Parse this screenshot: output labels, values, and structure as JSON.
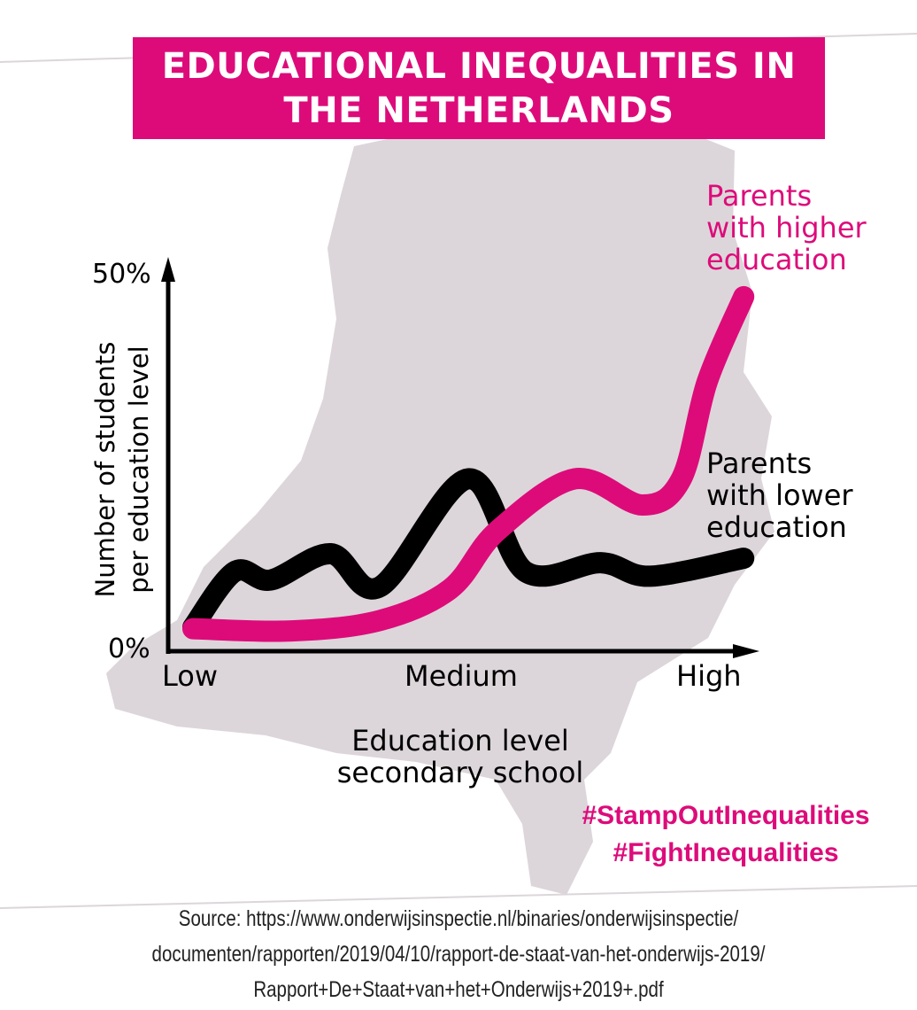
{
  "title": [
    "EDUCATIONAL INEQUALITIES IN",
    "THE NETHERLANDS"
  ],
  "colors": {
    "accent": "#dd0b7a",
    "map": "#dcd6da",
    "lower_series": "#000000"
  },
  "chart_data": {
    "type": "line",
    "xlabel": [
      "Education level",
      "secondary school"
    ],
    "ylabel": [
      "Number of students",
      "per education level"
    ],
    "x_tick_labels": [
      "Low",
      "Medium",
      "High"
    ],
    "y_tick_labels": [
      "0%",
      "50%"
    ],
    "ylim": [
      0,
      50
    ],
    "xlim": [
      "Low",
      "High"
    ],
    "grid": false,
    "x_scale_note": "categorical axis Low(0) – Medium(1) – High(2)",
    "series": [
      {
        "name": "Parents with higher education",
        "color": "#dd0b7a",
        "x": [
          0,
          0.38,
          0.72,
          0.99,
          1.17,
          1.47,
          1.73,
          1.88,
          1.98,
          2.12
        ],
        "y": [
          3.0,
          2.7,
          4.1,
          8.3,
          16.0,
          23.0,
          19.5,
          23.0,
          36.0,
          47.3
        ]
      },
      {
        "name": "Parents with lower education",
        "color": "#000000",
        "x": [
          0,
          0.16,
          0.3,
          0.53,
          0.72,
          1.06,
          1.28,
          1.57,
          1.76,
          2.12
        ],
        "y": [
          3.2,
          10.6,
          9.5,
          13.0,
          8.6,
          23.0,
          10.6,
          11.8,
          10.0,
          12.4
        ]
      }
    ]
  },
  "series_labels": {
    "higher": [
      "Parents",
      "with higher",
      "education"
    ],
    "lower": [
      "Parents",
      "with lower",
      "education"
    ]
  },
  "hashtags": [
    "#StampOutInequalities",
    "#FightInequalities"
  ],
  "source": [
    "Source: https://www.onderwijsinspectie.nl/binaries/onderwijsinspectie/",
    "documenten/rapporten/2019/04/10/rapport-de-staat-van-het-onderwijs-2019/",
    "Rapport+De+Staat+van+het+Onderwijs+2019+.pdf"
  ]
}
